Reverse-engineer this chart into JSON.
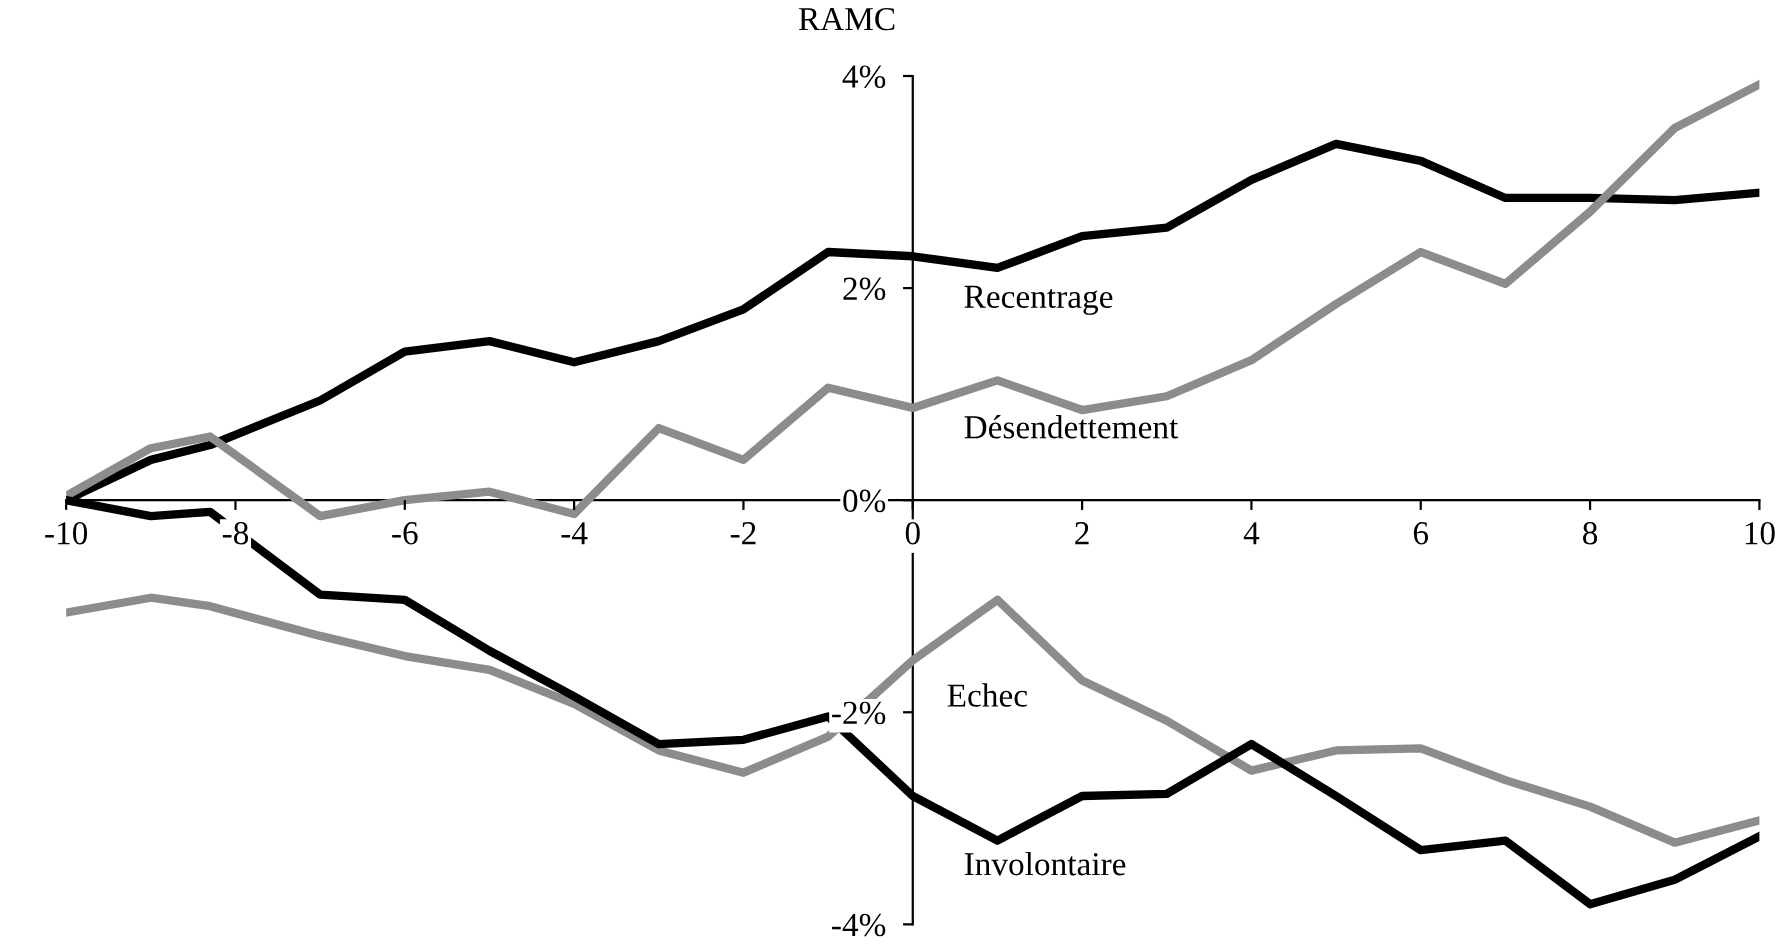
{
  "chart_data": {
    "type": "line",
    "ylabel": "RAMC",
    "x": [
      -10,
      -9,
      -8.3,
      -7,
      -6,
      -5,
      -4,
      -3,
      -2,
      -1,
      0,
      1,
      2,
      3,
      4,
      5,
      6,
      7,
      8,
      9,
      10
    ],
    "series": [
      {
        "name": "Recentrage",
        "color": "#000000",
        "values": [
          0.0,
          0.38,
          0.52,
          0.94,
          1.4,
          1.5,
          1.3,
          1.5,
          1.8,
          2.34,
          2.3,
          2.19,
          2.49,
          2.57,
          3.02,
          3.36,
          3.2,
          2.85,
          2.85,
          2.83,
          2.9
        ]
      },
      {
        "name": "Désendettement",
        "color": "#8c8c8c",
        "values": [
          0.04,
          0.49,
          0.6,
          -0.15,
          0.0,
          0.08,
          -0.13,
          0.68,
          0.38,
          1.06,
          0.87,
          1.13,
          0.85,
          0.98,
          1.32,
          1.85,
          2.34,
          2.04,
          2.72,
          3.51,
          3.92
        ]
      },
      {
        "name": "Echec",
        "color": "#8c8c8c",
        "values": [
          -1.06,
          -0.92,
          -1.0,
          -1.28,
          -1.47,
          -1.6,
          -1.92,
          -2.36,
          -2.57,
          -2.23,
          -1.51,
          -0.94,
          -1.7,
          -2.08,
          -2.55,
          -2.36,
          -2.34,
          -2.64,
          -2.89,
          -3.23,
          -3.02
        ]
      },
      {
        "name": "Involontaire",
        "color": "#000000",
        "values": [
          0.0,
          -0.15,
          -0.11,
          -0.89,
          -0.94,
          -1.42,
          -1.85,
          -2.3,
          -2.26,
          -2.04,
          -2.79,
          -3.21,
          -2.79,
          -2.77,
          -2.3,
          -2.79,
          -3.3,
          -3.21,
          -3.81,
          -3.58,
          -3.17
        ]
      }
    ],
    "xlim": [
      -10,
      10
    ],
    "xticks": [
      -10,
      -8,
      -6,
      -4,
      -2,
      0,
      2,
      4,
      6,
      8,
      10
    ],
    "ylim": [
      -4,
      4
    ],
    "yticks": [
      {
        "value": -4,
        "label": "-4%"
      },
      {
        "value": -2,
        "label": "-2%"
      },
      {
        "value": 0,
        "label": "0%"
      },
      {
        "value": 2,
        "label": "2%"
      },
      {
        "value": 4,
        "label": "4%"
      }
    ],
    "grid": false,
    "legend": false,
    "marker": "none",
    "line_style": "solid"
  }
}
